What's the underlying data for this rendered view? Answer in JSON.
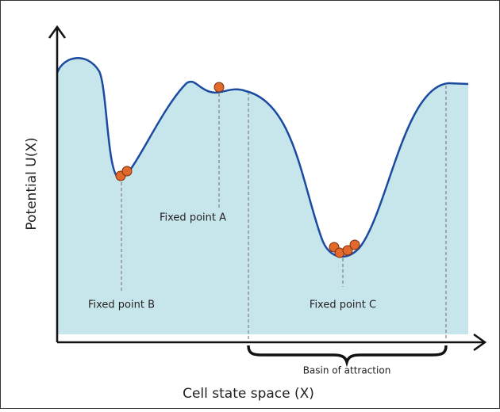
{
  "axes": {
    "y_label": "Potential  U(X)",
    "x_label": "Cell state space (X)"
  },
  "annotations": {
    "fixed_point_a": "Fixed point A",
    "fixed_point_b": "Fixed point B",
    "fixed_point_c": "Fixed point C",
    "basin": "Basin of attraction"
  }
}
